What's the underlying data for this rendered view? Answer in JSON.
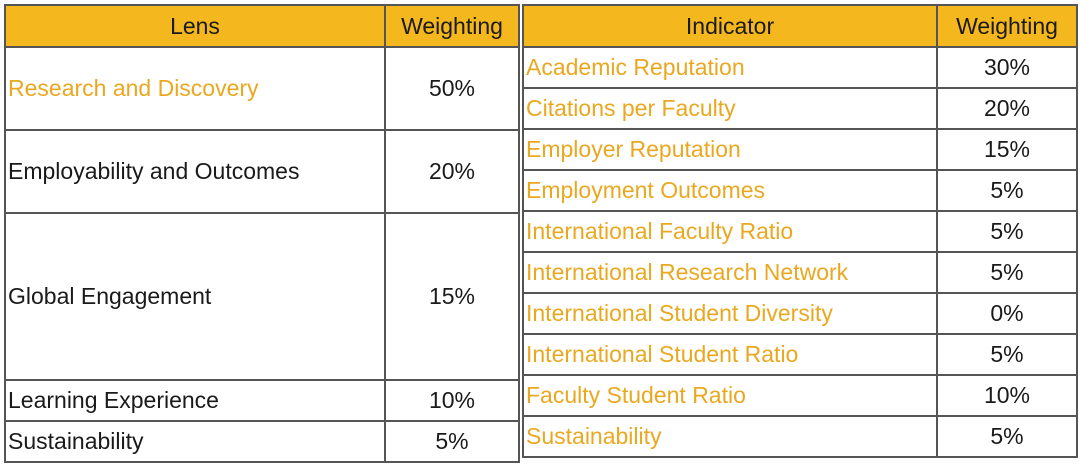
{
  "colors": {
    "header_bg": "#f4b71d",
    "highlight_text": "#eaa820",
    "border": "#555555",
    "text": "#1a1a1a"
  },
  "lens_table": {
    "headers": {
      "lens": "Lens",
      "weighting": "Weighting"
    },
    "rows": [
      {
        "lens": "Research and Discovery",
        "weighting": "50%"
      },
      {
        "lens": "Employability and Outcomes",
        "weighting": "20%"
      },
      {
        "lens": "Global Engagement",
        "weighting": "15%"
      },
      {
        "lens": "Learning Experience",
        "weighting": "10%"
      },
      {
        "lens": "Sustainability",
        "weighting": "5%"
      }
    ]
  },
  "indicator_table": {
    "headers": {
      "indicator": "Indicator",
      "weighting": "Weighting"
    },
    "rows": [
      {
        "indicator": "Academic Reputation",
        "weighting": "30%"
      },
      {
        "indicator": "Citations per Faculty",
        "weighting": "20%"
      },
      {
        "indicator": "Employer Reputation",
        "weighting": "15%"
      },
      {
        "indicator": "Employment Outcomes",
        "weighting": "5%"
      },
      {
        "indicator": "International Faculty Ratio",
        "weighting": "5%"
      },
      {
        "indicator": "International Research Network",
        "weighting": "5%"
      },
      {
        "indicator": "International Student Diversity",
        "weighting": "0%"
      },
      {
        "indicator": "International Student Ratio",
        "weighting": "5%"
      },
      {
        "indicator": "Faculty Student Ratio",
        "weighting": "10%"
      },
      {
        "indicator": "Sustainability",
        "weighting": "5%"
      }
    ]
  }
}
